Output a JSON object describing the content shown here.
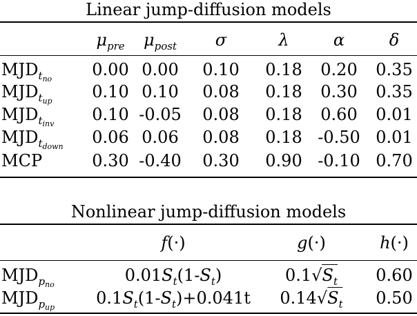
{
  "linear": {
    "caption": "Linear jump-diffusion models",
    "headers": {
      "mu_pre": "pre",
      "mu_post": "post",
      "sigma": "σ",
      "lambda": "λ",
      "alpha": "α",
      "delta": "δ",
      "mu_symbol": "μ"
    },
    "rows": [
      {
        "base": "MJD",
        "sub": "t",
        "subsub": "no",
        "v": [
          "0.00",
          "0.00",
          "0.10",
          "0.18",
          "0.20",
          "0.35"
        ]
      },
      {
        "base": "MJD",
        "sub": "t",
        "subsub": "up",
        "v": [
          "0.10",
          "0.10",
          "0.08",
          "0.18",
          "0.30",
          "0.35"
        ]
      },
      {
        "base": "MJD",
        "sub": "t",
        "subsub": "inv",
        "v": [
          "0.10",
          "-0.05",
          "0.08",
          "0.18",
          "0.60",
          "0.01"
        ]
      },
      {
        "base": "MJD",
        "sub": "t",
        "subsub": "down",
        "v": [
          "0.06",
          "0.06",
          "0.08",
          "0.18",
          "-0.50",
          "0.01"
        ]
      },
      {
        "base": "MCP",
        "sub": "",
        "subsub": "",
        "v": [
          "0.30",
          "-0.40",
          "0.30",
          "0.90",
          "-0.10",
          "0.70"
        ]
      }
    ]
  },
  "nonlinear": {
    "caption": "Nonlinear jump-diffusion models",
    "headers": {
      "f": "f(·)",
      "g": "g(·)",
      "h": "h(·)"
    },
    "rows": [
      {
        "base": "MJD",
        "sub": "p",
        "subsub": "no",
        "f": "0.01S(1-S)",
        "g_coef": "0.1",
        "g_rad": "S",
        "h": "0.60"
      },
      {
        "base": "MJD",
        "sub": "p",
        "subsub": "up",
        "f": "0.1S(1-S)+0.041t",
        "g_coef": "0.14",
        "g_rad": "S",
        "h": "0.50"
      }
    ]
  }
}
